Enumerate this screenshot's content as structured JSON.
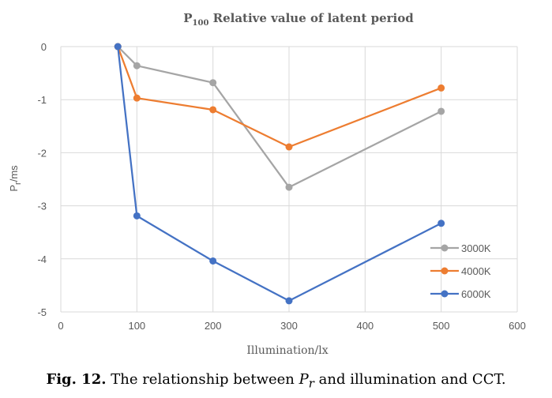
{
  "chart_data": {
    "type": "line",
    "title": {
      "prefix": "P",
      "subscript": "100",
      "rest": " Relative value of latent period"
    },
    "xlabel": "Illumination/lx",
    "ylabel": {
      "main": "P",
      "subscript": "r",
      "rest": "/ms"
    },
    "xlim": [
      0,
      600
    ],
    "ylim": [
      -5,
      0
    ],
    "xticks": [
      0,
      100,
      200,
      300,
      400,
      500,
      600
    ],
    "yticks": [
      0,
      -1,
      -2,
      -3,
      -4,
      -5
    ],
    "grid": true,
    "legend_position": "bottom-right",
    "series": [
      {
        "name": "3000K",
        "color": "#a5a5a5",
        "x": [
          75,
          100,
          200,
          300,
          500
        ],
        "y": [
          0,
          -0.36,
          -0.68,
          -2.65,
          -1.22
        ]
      },
      {
        "name": "4000K",
        "color": "#ed7d31",
        "x": [
          75,
          100,
          200,
          300,
          500
        ],
        "y": [
          0,
          -0.97,
          -1.19,
          -1.89,
          -0.78
        ]
      },
      {
        "name": "6000K",
        "color": "#4472c4",
        "x": [
          75,
          100,
          200,
          300,
          500
        ],
        "y": [
          0,
          -3.19,
          -4.04,
          -4.79,
          -3.33
        ]
      }
    ]
  },
  "caption": {
    "label": "Fig. 12.",
    "text_before": " The relationship between ",
    "var_main": "P",
    "var_sub": "r",
    "text_after": " and illumination and CCT."
  }
}
